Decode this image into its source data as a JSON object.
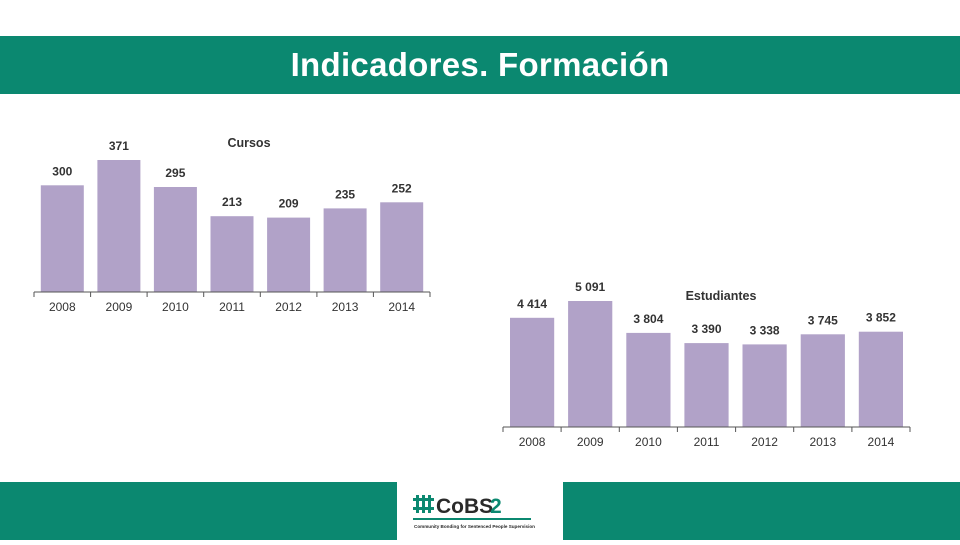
{
  "header": {
    "title": "Indicadores. Formación"
  },
  "logo": {
    "name": "CoBS2",
    "subtitle": "Community Bonding for Sentenced People Supervision",
    "colors": {
      "green": "#0b8870",
      "dark": "#2a2a2a"
    }
  },
  "colors": {
    "band": "#0b8870",
    "bar": "#b1a2c8",
    "text": "#333333"
  },
  "chart_data": [
    {
      "type": "bar",
      "title": "Cursos",
      "categories": [
        "2008",
        "2009",
        "2010",
        "2011",
        "2012",
        "2013",
        "2014"
      ],
      "values": [
        300,
        371,
        295,
        213,
        209,
        235,
        252
      ],
      "value_labels": [
        "300",
        "371",
        "295",
        "213",
        "209",
        "235",
        "252"
      ],
      "ylim": [
        0,
        371
      ],
      "grid": false,
      "legend": "none"
    },
    {
      "type": "bar",
      "title": "Estudiantes",
      "categories": [
        "2008",
        "2009",
        "2010",
        "2011",
        "2012",
        "2013",
        "2014"
      ],
      "values": [
        4414,
        5091,
        3804,
        3390,
        3338,
        3745,
        3852
      ],
      "value_labels": [
        "4 414",
        "5 091",
        "3 804",
        "3 390",
        "3 338",
        "3 745",
        "3 852"
      ],
      "ylim": [
        0,
        5091
      ],
      "grid": false,
      "legend": "none"
    }
  ]
}
